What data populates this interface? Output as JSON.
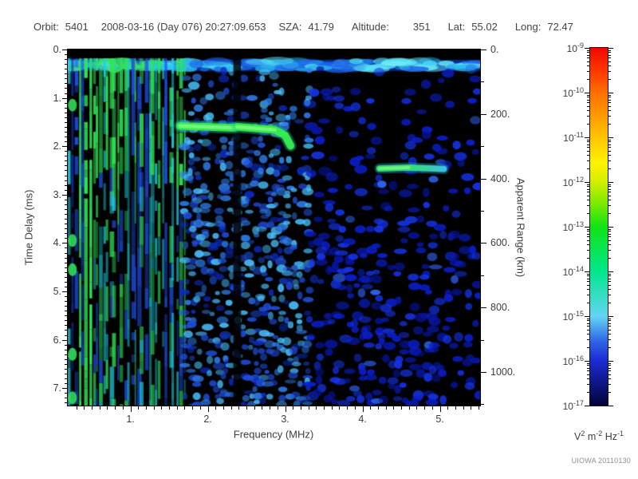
{
  "header": {
    "orbit_label": "Orbit:",
    "orbit_value": "5401",
    "datetime": "2008-03-16 (Day 076) 20:27:09.653",
    "sza_label": "SZA:",
    "sza_value": "41.79",
    "altitude_label": "Altitude:",
    "altitude_value": "351",
    "lat_label": "Lat:",
    "lat_value": "55.02",
    "long_label": "Long:",
    "long_value": "72.47"
  },
  "watermark": "UIOWA 20110130",
  "chart_data": {
    "type": "heatmap",
    "subtype": "radar-sounder-ionogram-spectrogram",
    "x_axis": {
      "label": "Frequency (MHz)",
      "min": 0.19,
      "max": 5.52,
      "major_values": [
        1,
        2,
        3,
        4,
        5
      ],
      "major_ticks": [
        "1.",
        "2.",
        "3.",
        "4.",
        "5."
      ],
      "minor_step": 0.1
    },
    "y_axis": {
      "label": "Time Delay (ms)",
      "min": 0,
      "max": 7.36,
      "major_values": [
        0,
        1,
        2,
        3,
        4,
        5,
        6,
        7
      ],
      "major_ticks": [
        "0.",
        "1.",
        "2.",
        "3.",
        "4.",
        "5.",
        "6.",
        "7."
      ],
      "minor_step": 0.1
    },
    "y2_axis": {
      "label": "Apparent Range (km)",
      "min": 0,
      "max": 1104,
      "km_per_ms": 150,
      "major_values": [
        0,
        200,
        400,
        600,
        800,
        1000
      ],
      "major_ticks": [
        "0.",
        "200.",
        "400.",
        "600.",
        "800.",
        "1000."
      ],
      "minor_step": 100
    },
    "colorbar": {
      "scale": "log",
      "tick_exponents": [
        "-9",
        "-10",
        "-11",
        "-12",
        "-13",
        "-14",
        "-15",
        "-16",
        "-17"
      ],
      "unit_segments": [
        [
          "V",
          "2"
        ],
        [
          "m",
          "-2"
        ],
        [
          "Hz",
          "-1"
        ]
      ],
      "gradient": [
        [
          0.0,
          "#ee0800"
        ],
        [
          0.06,
          "#ff3300"
        ],
        [
          0.125,
          "#ff6f00"
        ],
        [
          0.25,
          "#ffc400"
        ],
        [
          0.32,
          "#fff200"
        ],
        [
          0.375,
          "#d2ef00"
        ],
        [
          0.44,
          "#74ea00"
        ],
        [
          0.5,
          "#12e315"
        ],
        [
          0.625,
          "#00e78e"
        ],
        [
          0.75,
          "#64d5f2"
        ],
        [
          0.82,
          "#2e66e6"
        ],
        [
          0.875,
          "#1b2bd2"
        ],
        [
          1.0,
          "#020238"
        ]
      ]
    },
    "features": {
      "background": "#000000",
      "top_black_row_ms": [
        0,
        0.18
      ],
      "surface_band": {
        "t": [
          0.18,
          0.44
        ],
        "f": [
          0.19,
          5.52
        ],
        "base_color": "rgba(0,60,210,0.72)",
        "bright_colors": [
          "#29b8f0",
          "#55ddf5",
          "#1e66e8"
        ],
        "green_f_max": 1.45,
        "green_color": "#3ae066",
        "right_bright_f_min": 4.1,
        "right_bright_color": "#6ceef8"
      },
      "stripe_zone": {
        "f": [
          0.19,
          1.72
        ],
        "t": [
          0.18,
          7.36
        ],
        "count": 34,
        "full_green_f_max": 0.52,
        "bright_t_max": 2.45,
        "colors": {
          "green": "#2fe455",
          "cyan": "#1ecfe0",
          "blue": "#2050e8",
          "dark": "#1030a8"
        }
      },
      "mid_speckle": {
        "f": [
          1.72,
          3.35
        ],
        "t": [
          0.44,
          7.36
        ],
        "density": 0.52,
        "sparse_t_max": 1.3,
        "colors": [
          "#49c0ff",
          "#2f80f2",
          "#1f4fe0",
          "#0c2cc0"
        ]
      },
      "right_speckle": {
        "f": [
          3.35,
          5.52
        ],
        "t": [
          0.44,
          7.36
        ],
        "density_base": 0.12,
        "density_ramp": 0.34,
        "edge_fade_f": 5.25,
        "colors": [
          "#1534ea",
          "#0a1fce",
          "#0715a2",
          "#2e63f2"
        ]
      },
      "interference_gap": {
        "f": [
          2.33,
          2.43
        ],
        "color": "rgba(0,0,0,0.82)"
      },
      "traces": [
        {
          "points": [
            [
              1.64,
              1.58
            ],
            [
              2.33,
              1.62
            ]
          ],
          "width_ms": 0.16,
          "color": "#37ef4d",
          "fringe": "#20c9a0"
        },
        {
          "points": [
            [
              2.38,
              1.6
            ],
            [
              2.87,
              1.66
            ],
            [
              3.0,
              1.78
            ],
            [
              3.07,
              1.99
            ]
          ],
          "width_ms": 0.16,
          "color": "#37ef4d",
          "fringe": "#20c9a0"
        },
        {
          "points": [
            [
              4.22,
              2.46
            ],
            [
              4.6,
              2.44
            ],
            [
              5.05,
              2.47
            ]
          ],
          "width_ms": 0.13,
          "color": "#33e86a",
          "fade_to": "#3fc8ea",
          "fringe": "#2aa8d8"
        }
      ],
      "left_edge_blobs": {
        "f": 0.25,
        "t_list": [
          1.15,
          3.95,
          4.55,
          6.3,
          7.2
        ],
        "color": "#35e85c"
      }
    }
  }
}
